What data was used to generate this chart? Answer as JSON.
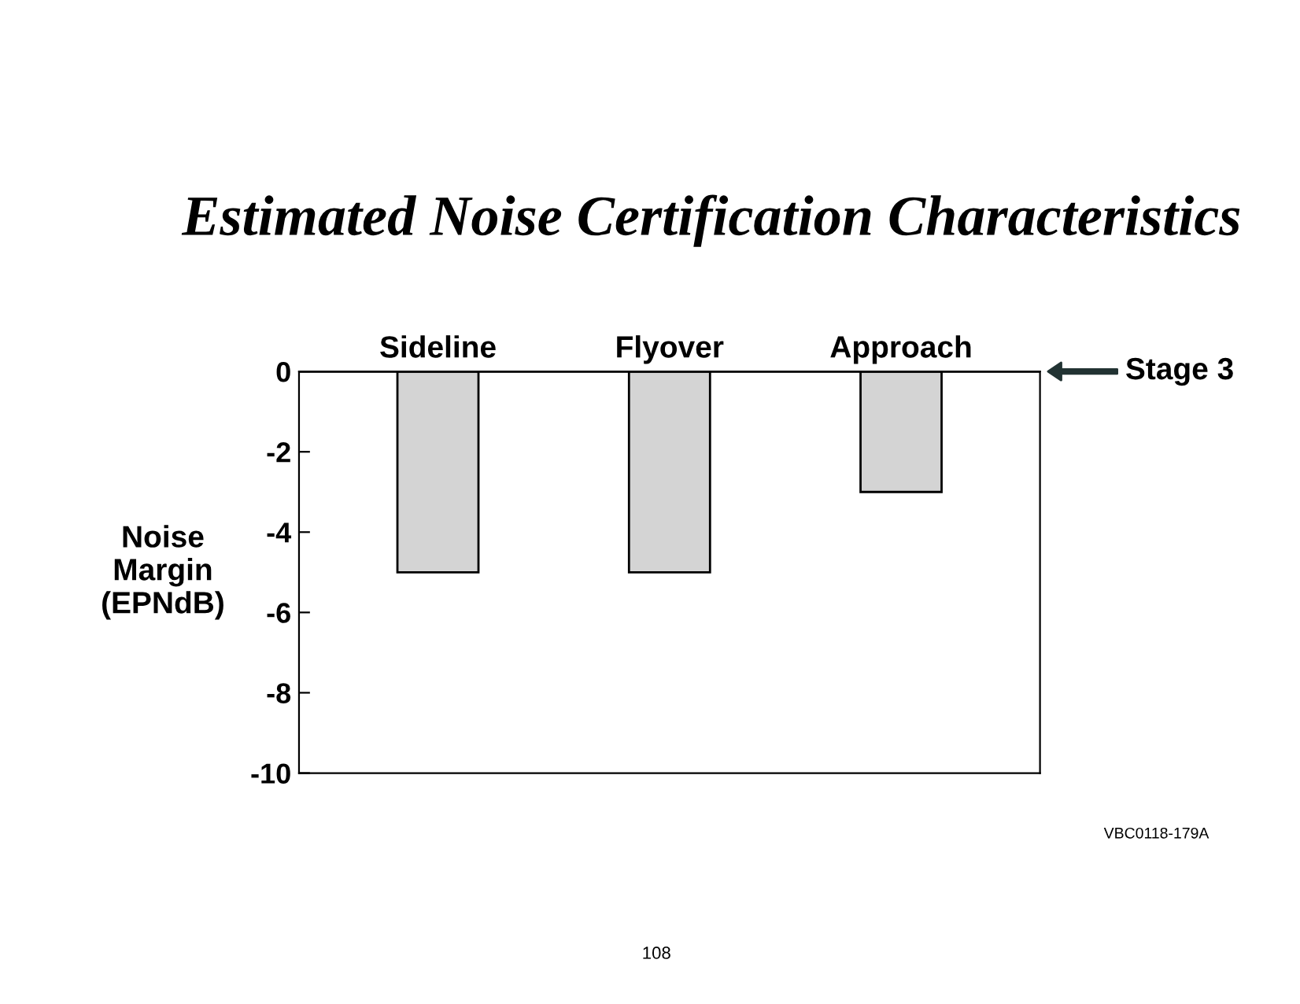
{
  "chart_data": {
    "type": "bar",
    "title": "Estimated Noise Certification Characteristics",
    "ylabel": "Noise\nMargin\n(EPNdB)",
    "categories": [
      "Sideline",
      "Flyover",
      "Approach"
    ],
    "values": [
      -5,
      -5,
      -3
    ],
    "color": "#d4d4d4",
    "ylim": [
      -10,
      0
    ],
    "yticks": [
      0,
      -2,
      -4,
      -6,
      -8,
      -10
    ],
    "grid": false,
    "legend": false,
    "ref_lines": [
      {
        "axis": "y",
        "value": 0,
        "label": "Stage 3"
      }
    ],
    "annotations": [
      "VBC0118-179A",
      "108"
    ]
  }
}
